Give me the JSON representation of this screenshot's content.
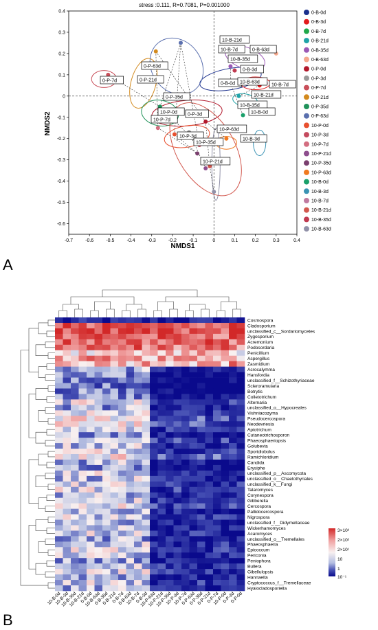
{
  "panel_labels": [
    "A",
    "B"
  ],
  "colors": {
    "0-B-0d": "#1a2f8c",
    "0-B-3d": "#e31a1c",
    "0-B-7d": "#20a84a",
    "0-B-21d": "#1fa3a8",
    "0-B-35d": "#9b59b6",
    "0-B-63d": "#f5a98e",
    "0-P-0d": "#b2182b",
    "0-P-3d": "#9a9a9a",
    "0-P-7d": "#c94f5a",
    "0-P-21d": "#d38a1e",
    "0-P-35d": "#20925a",
    "0-P-63d": "#5a6fae",
    "10-P-0d": "#e8502f",
    "10-P-3d": "#c44a5e",
    "10-P-7d": "#d36e80",
    "10-P-21d": "#8e4e8e",
    "10-P-35d": "#7a3f6e",
    "10-P-63d": "#f07a20",
    "10-B-0d": "#1aa06a",
    "10-B-3d": "#3a93b4",
    "10-B-7d": "#c07aa0",
    "10-B-21d": "#d2584e",
    "10-B-35d": "#c03a50",
    "10-B-63d": "#9191a8"
  },
  "chart_data": [
    {
      "type": "scatter",
      "title": "stress :0.111, R=0.7081, P=0.001000",
      "xlabel": "NMDS1",
      "ylabel": "NMDS2",
      "xlim": [
        -0.7,
        0.4
      ],
      "ylim": [
        -0.65,
        0.4
      ],
      "xticks": [
        "-0.7",
        "-0.6",
        "-0.5",
        "-0.4",
        "-0.3",
        "-0.2",
        "-0.1",
        "0",
        "0.1",
        "0.2",
        "0.3",
        "0.4"
      ],
      "yticks": [
        "0.4",
        "0.3",
        "0.2",
        "0.1",
        "0",
        "-0.1",
        "-0.2",
        "-0.3",
        "-0.4",
        "-0.5",
        "-0.6"
      ],
      "legend_position": "right",
      "series": [
        {
          "name": "0-B-0d",
          "x": 0.08,
          "y": 0.06,
          "ellipse": [
            0.08,
            0.08,
            0.15,
            0.05,
            -10
          ]
        },
        {
          "name": "0-B-3d",
          "x": 0.22,
          "y": 0.05,
          "ellipse": [
            0.2,
            0.06,
            0.07,
            0.03,
            0
          ]
        },
        {
          "name": "0-B-7d",
          "x": 0.12,
          "y": 0.22,
          "ellipse": null
        },
        {
          "name": "0-B-21d",
          "x": 0.12,
          "y": 0.0,
          "ellipse": [
            0.15,
            -0.02,
            0.06,
            0.03,
            10
          ]
        },
        {
          "name": "0-B-35d",
          "x": 0.08,
          "y": 0.14,
          "ellipse": [
            0.15,
            0.18,
            0.1,
            0.05,
            20
          ]
        },
        {
          "name": "0-B-63d",
          "x": 0.3,
          "y": 0.2,
          "ellipse": null
        },
        {
          "name": "0-P-0d",
          "x": -0.04,
          "y": -0.12,
          "ellipse": [
            -0.13,
            -0.08,
            0.17,
            0.06,
            -5
          ]
        },
        {
          "name": "0-P-3d",
          "x": -0.12,
          "y": -0.17,
          "ellipse": null
        },
        {
          "name": "0-P-7d",
          "x": -0.51,
          "y": 0.1,
          "ellipse": [
            -0.53,
            0.08,
            0.06,
            0.04,
            0
          ]
        },
        {
          "name": "0-P-21d",
          "x": -0.28,
          "y": 0.21,
          "ellipse": [
            -0.34,
            0.06,
            0.06,
            0.12,
            15
          ]
        },
        {
          "name": "0-P-35d",
          "x": -0.26,
          "y": -0.05,
          "ellipse": [
            -0.26,
            -0.08,
            0.09,
            0.06,
            10
          ]
        },
        {
          "name": "0-P-63d",
          "x": -0.16,
          "y": 0.25,
          "ellipse": [
            -0.18,
            0.14,
            0.12,
            0.14,
            -35
          ]
        },
        {
          "name": "10-P-0d",
          "x": -0.19,
          "y": -0.18,
          "ellipse": [
            -0.13,
            -0.19,
            0.11,
            0.05,
            -10
          ]
        },
        {
          "name": "10-P-3d",
          "x": -0.07,
          "y": -0.23,
          "ellipse": null
        },
        {
          "name": "10-P-7d",
          "x": -0.27,
          "y": -0.15,
          "ellipse": null
        },
        {
          "name": "10-P-21d",
          "x": -0.04,
          "y": -0.34,
          "ellipse": null
        },
        {
          "name": "10-P-35d",
          "x": -0.08,
          "y": -0.27,
          "ellipse": null
        },
        {
          "name": "10-P-63d",
          "x": 0.06,
          "y": -0.2,
          "ellipse": [
            0.06,
            -0.22,
            0.05,
            0.03,
            0
          ]
        },
        {
          "name": "10-B-0d",
          "x": 0.14,
          "y": -0.09,
          "ellipse": null
        },
        {
          "name": "10-B-3d",
          "x": 0.23,
          "y": -0.2,
          "ellipse": [
            0.22,
            -0.22,
            0.03,
            0.06,
            0
          ]
        },
        {
          "name": "10-B-7d",
          "x": 0.25,
          "y": 0.06,
          "ellipse": null
        },
        {
          "name": "10-B-21d",
          "x": -0.02,
          "y": -0.33,
          "ellipse": [
            -0.04,
            -0.25,
            0.14,
            0.24,
            -30
          ]
        },
        {
          "name": "10-B-35d",
          "x": 0.1,
          "y": 0.12,
          "ellipse": null
        },
        {
          "name": "10-B-63d",
          "x": 0.0,
          "y": -0.45,
          "ellipse": [
            0.01,
            -0.32,
            0.02,
            0.17,
            0
          ]
        }
      ],
      "point_labels": [
        {
          "text": "10-B-21d",
          "series": "10-B-21d"
        },
        {
          "text": "10-B-7d",
          "series": "10-B-7d"
        },
        {
          "text": "0-B-63d",
          "series": "0-B-63d"
        },
        {
          "text": "10-B-35d",
          "series": "10-B-35d"
        },
        {
          "text": "0-P-63d",
          "series": "0-P-63d"
        },
        {
          "text": "0-B-3d",
          "series": "0-B-3d"
        },
        {
          "text": "0-P-7d",
          "series": "0-P-7d"
        },
        {
          "text": "0-P-21d",
          "series": "0-P-21d"
        },
        {
          "text": "0-B-0d",
          "series": "0-B-0d"
        },
        {
          "text": "10-B-63d",
          "series": "10-B-63d"
        },
        {
          "text": "10-B-7d",
          "series": "10-B-7d"
        },
        {
          "text": "10-B-21d",
          "series": "10-B-21d"
        },
        {
          "text": "0-P-35d",
          "series": "0-P-35d"
        },
        {
          "text": "10-B-35d",
          "series": "10-B-35d"
        },
        {
          "text": "10-B-0d",
          "series": "10-B-0d"
        },
        {
          "text": "10-P-0d",
          "series": "10-P-0d"
        },
        {
          "text": "0-P-3d",
          "series": "0-P-3d"
        },
        {
          "text": "10-P-7d",
          "series": "10-P-7d"
        },
        {
          "text": "10-P-63d",
          "series": "10-P-63d"
        },
        {
          "text": "10-P-3d",
          "series": "10-P-3d"
        },
        {
          "text": "10-P-35d",
          "series": "10-P-35d"
        },
        {
          "text": "10-B-3d",
          "series": "10-B-3d"
        },
        {
          "text": "10-P-21d",
          "series": "10-P-21d"
        }
      ]
    },
    {
      "type": "heatmap",
      "samples": [
        "10-B-0d",
        "10-B-3d",
        "10-B-35d",
        "10-B-21d",
        "0-B-0d",
        "10-B-63d",
        "0-B-35d",
        "0-B-21d",
        "0-B-7d",
        "0-B-63d",
        "10-B-7d",
        "0-B-3d",
        "10-P-63d",
        "10-P-21d",
        "10-P-35d",
        "10-P-3d",
        "10-P-7d",
        "0-P-63d",
        "0-P-35d",
        "0-P-21d",
        "0-P-7d",
        "10-P-0d",
        "0-P-3d",
        "0-P-0d"
      ],
      "genera": [
        "Cosmospora",
        "Cladosporium",
        "unclassified_c__Sordariomycetes",
        "Zygosporium",
        "Acremonium",
        "Podosordaria",
        "Penicillium",
        "Aspergillus",
        "Zasmidium",
        "Acrocalymma",
        "Hansfordia",
        "unclassified_f__Schizothyriaceae",
        "Scleroramularia",
        "Botrytis",
        "Colletotrichum",
        "Alternaria",
        "unclassified_o__Hypocreales",
        "Vishniacozyma",
        "Pseudocercospora",
        "Neodevriesia",
        "Apiotrichum",
        "Cutaneotrichosporon",
        "Phaeosphaeriopsis",
        "Golubevia",
        "Sporidiobolus",
        "Ramichloridium",
        "Candida",
        "Erysiphe",
        "unclassified_p__Ascomycota",
        "unclassified_o__Chaetothyriales",
        "unclassified_k__Fungi",
        "Talaromyces",
        "Corynespora",
        "Gibberella",
        "Cercospora",
        "Pallidocercospora",
        "Nigrospora",
        "unclassified_f__Didymellaceae",
        "Wickerhamomyces",
        "Acaromyces",
        "unclassified_o__Tremellales",
        "Phaeosphaeria",
        "Epicoccum",
        "Periconia",
        "Peniophora",
        "Bullera",
        "Gibellulopsis",
        "Hannaella",
        "Cryptococcus_f__Tremellaceae",
        "Hyalocladosporiella"
      ],
      "row_means": [
        0.3,
        3.4,
        3.6,
        3.35,
        3.3,
        3.1,
        2.5,
        2.7,
        2.8,
        1.0,
        0.6,
        0.5,
        0.5,
        0.6,
        0.7,
        1.3,
        0.9,
        1.2,
        1.6,
        1.5,
        1.2,
        1.0,
        1.4,
        1.2,
        1.4,
        1.6,
        1.0,
        0.7,
        1.3,
        1.1,
        1.2,
        1.3,
        1.1,
        1.2,
        1.4,
        1.1,
        1.2,
        1.0,
        1.0,
        1.2,
        1.0,
        1.2,
        1.3,
        1.2,
        1.0,
        1.2,
        1.2,
        1.0,
        1.2,
        1.1
      ],
      "legend": {
        "labels": [
          "3×10³",
          "2×10²",
          "2×10¹",
          "10",
          "1",
          "10⁻¹"
        ],
        "scale": "log"
      }
    }
  ]
}
